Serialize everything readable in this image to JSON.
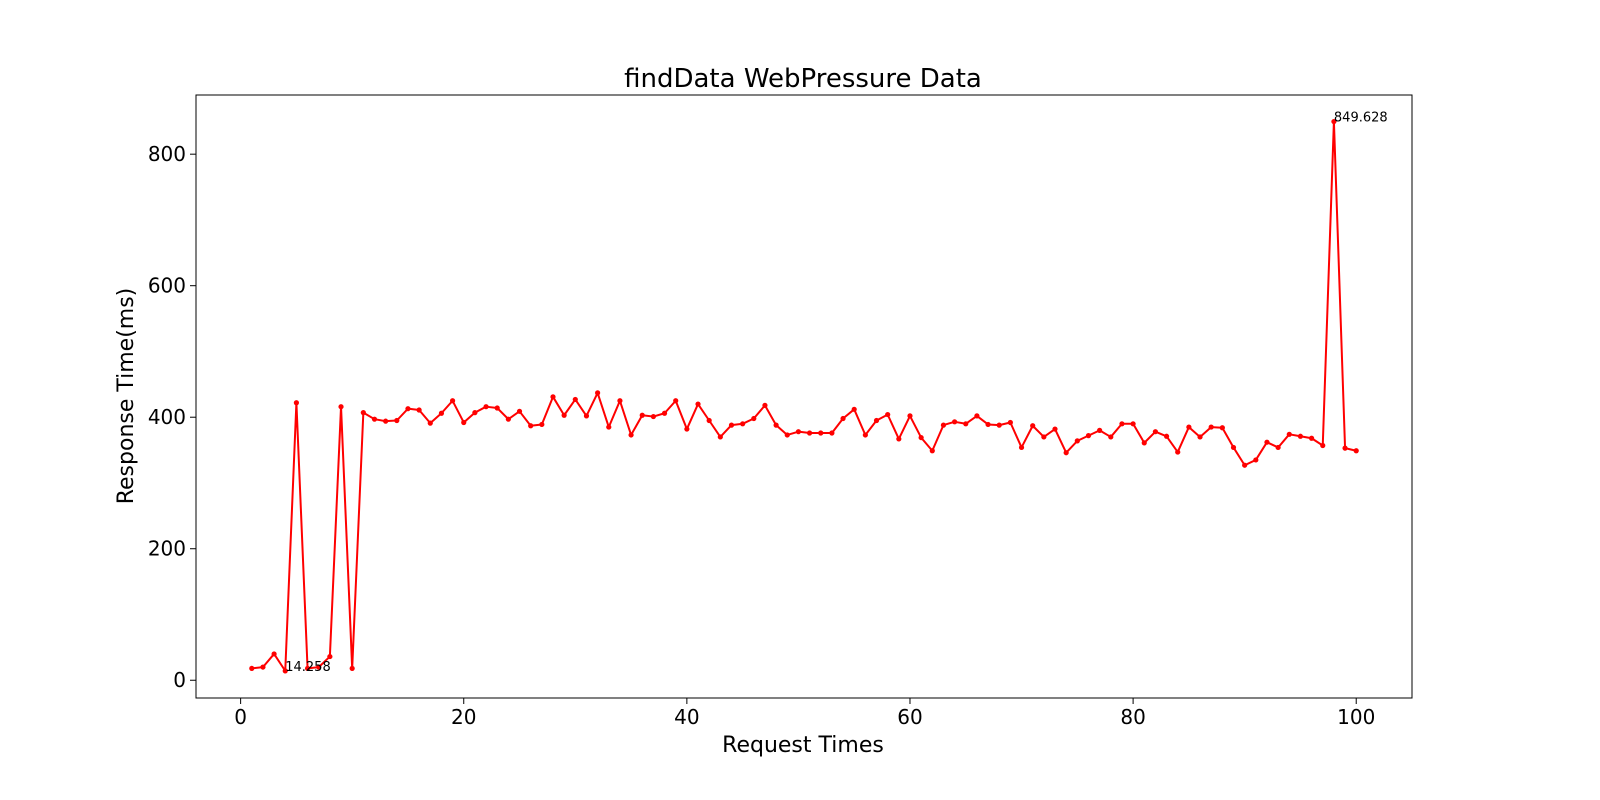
{
  "chart_data": {
    "type": "line",
    "title": "findData WebPressure Data",
    "xlabel": "Request Times",
    "ylabel": "Response Time(ms)",
    "xlim": [
      -4,
      105
    ],
    "ylim": [
      -27,
      890
    ],
    "xticks": [
      0,
      20,
      40,
      60,
      80,
      100
    ],
    "yticks": [
      0,
      200,
      400,
      600,
      800
    ],
    "grid": false,
    "legend": "none",
    "series": [
      {
        "color": "#ff0000",
        "marker": "circle",
        "x": [
          1,
          2,
          3,
          4,
          5,
          6,
          7,
          8,
          9,
          10,
          11,
          12,
          13,
          14,
          15,
          16,
          17,
          18,
          19,
          20,
          21,
          22,
          23,
          24,
          25,
          26,
          27,
          28,
          29,
          30,
          31,
          32,
          33,
          34,
          35,
          36,
          37,
          38,
          39,
          40,
          41,
          42,
          43,
          44,
          45,
          46,
          47,
          48,
          49,
          50,
          51,
          52,
          53,
          54,
          55,
          56,
          57,
          58,
          59,
          60,
          61,
          62,
          63,
          64,
          65,
          66,
          67,
          68,
          69,
          70,
          71,
          72,
          73,
          74,
          75,
          76,
          77,
          78,
          79,
          80,
          81,
          82,
          83,
          84,
          85,
          86,
          87,
          88,
          89,
          90,
          91,
          92,
          93,
          94,
          95,
          96,
          97,
          98,
          99,
          100
        ],
        "values": [
          18,
          20,
          40,
          14.258,
          422,
          18,
          20,
          36,
          416,
          18,
          407,
          397,
          394,
          395,
          413,
          411,
          391,
          406,
          425,
          392,
          407,
          416,
          414,
          397,
          409,
          387,
          389,
          431,
          403,
          427,
          402,
          437,
          385,
          425,
          373,
          403,
          401,
          406,
          425,
          382,
          420,
          395,
          370,
          388,
          390,
          398,
          418,
          388,
          373,
          378,
          376,
          376,
          376,
          398,
          412,
          373,
          395,
          404,
          367,
          402,
          369,
          349,
          388,
          393,
          390,
          402,
          389,
          388,
          392,
          354,
          387,
          370,
          382,
          346,
          364,
          372,
          380,
          370,
          390,
          390,
          361,
          378,
          371,
          347,
          385,
          370,
          385,
          384,
          354,
          327,
          335,
          362,
          354,
          374,
          371,
          368,
          357,
          849.628,
          353,
          349
        ]
      }
    ],
    "annotations": [
      {
        "x": 4,
        "y": 14.258,
        "text": "14.258"
      },
      {
        "x": 98,
        "y": 849.628,
        "text": "849.628"
      }
    ]
  }
}
